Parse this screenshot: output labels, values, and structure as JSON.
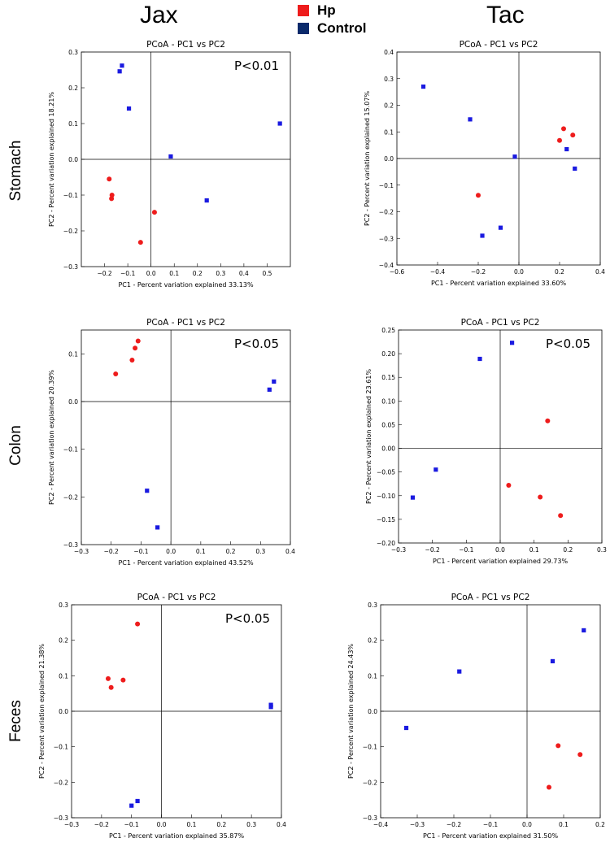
{
  "columns": [
    "Jax",
    "Tac"
  ],
  "rows": [
    "Stomach",
    "Colon",
    "Feces"
  ],
  "legend": [
    {
      "label": "Hp",
      "color": "#ee1c1c"
    },
    {
      "label": "Control",
      "color": "#0b2a6b"
    }
  ],
  "colors": {
    "hp": "#ee1c1c",
    "control": "#1a1ae0"
  },
  "chart_data": [
    {
      "type": "scatter",
      "title": "PCoA - PC1 vs PC2",
      "xlabel": "PC1 - Percent variation explained 33.13%",
      "ylabel": "PC2 - Percent variation explained 18.21%",
      "annotation": "P<0.01",
      "xlim": [
        -0.3,
        0.6
      ],
      "ylim": [
        -0.3,
        0.3
      ],
      "xticks": [
        -0.2,
        -0.1,
        0.0,
        0.1,
        0.2,
        0.3,
        0.4,
        0.5
      ],
      "xtick_labels": [
        "−0.2",
        "−0.1",
        "0.0",
        "0.1",
        "0.2",
        "0.3",
        "0.4",
        "0.5"
      ],
      "yticks": [
        -0.3,
        -0.2,
        -0.1,
        0.0,
        0.1,
        0.2,
        0.3
      ],
      "ytick_labels": [
        "−0.3",
        "−0.2",
        "−0.1",
        "0.0",
        "0.1",
        "0.2",
        "0.3"
      ],
      "series": [
        {
          "name": "Hp",
          "points": [
            [
              -0.18,
              -0.055
            ],
            [
              -0.168,
              -0.1
            ],
            [
              -0.17,
              -0.11
            ],
            [
              0.015,
              -0.148
            ],
            [
              -0.045,
              -0.232
            ]
          ]
        },
        {
          "name": "Control",
          "points": [
            [
              -0.125,
              0.262
            ],
            [
              -0.135,
              0.246
            ],
            [
              -0.095,
              0.142
            ],
            [
              0.085,
              0.008
            ],
            [
              0.24,
              -0.115
            ],
            [
              0.555,
              0.1
            ]
          ]
        }
      ]
    },
    {
      "type": "scatter",
      "title": "PCoA - PC1 vs PC2",
      "xlabel": "PC1 - Percent variation explained 33.60%",
      "ylabel": "PC2 - Percent variation explained 15.07%",
      "annotation": "",
      "xlim": [
        -0.6,
        0.4
      ],
      "ylim": [
        -0.4,
        0.4
      ],
      "xticks": [
        -0.6,
        -0.4,
        -0.2,
        0.0,
        0.2,
        0.4
      ],
      "xtick_labels": [
        "−0.6",
        "−0.4",
        "−0.2",
        "0.0",
        "0.2",
        "0.4"
      ],
      "yticks": [
        -0.4,
        -0.3,
        -0.2,
        -0.1,
        0.0,
        0.1,
        0.2,
        0.3,
        0.4
      ],
      "ytick_labels": [
        "−0.4",
        "−0.3",
        "−0.2",
        "−0.1",
        "0.0",
        "0.1",
        "0.2",
        "0.3",
        "0.4"
      ],
      "series": [
        {
          "name": "Hp",
          "points": [
            [
              0.22,
              0.112
            ],
            [
              0.265,
              0.088
            ],
            [
              0.2,
              0.068
            ],
            [
              -0.2,
              -0.138
            ]
          ]
        },
        {
          "name": "Control",
          "points": [
            [
              -0.47,
              0.27
            ],
            [
              -0.24,
              0.147
            ],
            [
              -0.02,
              0.007
            ],
            [
              0.235,
              0.035
            ],
            [
              0.275,
              -0.038
            ],
            [
              -0.18,
              -0.29
            ],
            [
              -0.09,
              -0.26
            ]
          ]
        }
      ]
    },
    {
      "type": "scatter",
      "title": "PCoA - PC1 vs PC2",
      "xlabel": "PC1 - Percent variation explained 43.52%",
      "ylabel": "PC2 - Percent variation explained 20.39%",
      "annotation": "P<0.05",
      "xlim": [
        -0.3,
        0.4
      ],
      "ylim": [
        -0.3,
        0.15
      ],
      "xticks": [
        -0.3,
        -0.2,
        -0.1,
        0.0,
        0.1,
        0.2,
        0.3,
        0.4
      ],
      "xtick_labels": [
        "−0.3",
        "−0.2",
        "−0.1",
        "0.0",
        "0.1",
        "0.2",
        "0.3",
        "0.4"
      ],
      "yticks": [
        -0.3,
        -0.2,
        -0.1,
        0.0,
        0.1
      ],
      "ytick_labels": [
        "−0.3",
        "−0.2",
        "−0.1",
        "0.0",
        "0.1"
      ],
      "series": [
        {
          "name": "Hp",
          "points": [
            [
              -0.11,
              0.127
            ],
            [
              -0.12,
              0.112
            ],
            [
              -0.13,
              0.087
            ],
            [
              -0.185,
              0.058
            ]
          ]
        },
        {
          "name": "Control",
          "points": [
            [
              0.345,
              0.042
            ],
            [
              0.33,
              0.025
            ],
            [
              -0.08,
              -0.187
            ],
            [
              -0.045,
              -0.264
            ]
          ]
        }
      ]
    },
    {
      "type": "scatter",
      "title": "PCoA - PC1 vs PC2",
      "xlabel": "PC1 - Percent variation explained 29.73%",
      "ylabel": "PC2 - Percent variation explained 23.61%",
      "annotation": "P<0.05",
      "xlim": [
        -0.3,
        0.3
      ],
      "ylim": [
        -0.2,
        0.25
      ],
      "xticks": [
        -0.3,
        -0.2,
        -0.1,
        0.0,
        0.1,
        0.2,
        0.3
      ],
      "xtick_labels": [
        "−0.3",
        "−0.2",
        "−0.1",
        "0.0",
        "0.1",
        "0.2",
        "0.3"
      ],
      "yticks": [
        -0.2,
        -0.15,
        -0.1,
        -0.05,
        0.0,
        0.05,
        0.1,
        0.15,
        0.2,
        0.25
      ],
      "ytick_labels": [
        "−0.20",
        "−0.15",
        "−0.10",
        "−0.05",
        "0.00",
        "0.05",
        "0.10",
        "0.15",
        "0.20",
        "0.25"
      ],
      "series": [
        {
          "name": "Hp",
          "points": [
            [
              0.14,
              0.058
            ],
            [
              0.025,
              -0.078
            ],
            [
              0.118,
              -0.103
            ],
            [
              0.178,
              -0.142
            ]
          ]
        },
        {
          "name": "Control",
          "points": [
            [
              0.035,
              0.223
            ],
            [
              -0.06,
              0.189
            ],
            [
              -0.19,
              -0.045
            ],
            [
              -0.258,
              -0.104
            ]
          ]
        }
      ]
    },
    {
      "type": "scatter",
      "title": "PCoA - PC1 vs PC2",
      "xlabel": "PC1 - Percent variation explained 35.87%",
      "ylabel": "PC2 - Percent variation explained 21.38%",
      "annotation": "P<0.05",
      "xlim": [
        -0.3,
        0.4
      ],
      "ylim": [
        -0.3,
        0.3
      ],
      "xticks": [
        -0.3,
        -0.2,
        -0.1,
        0.0,
        0.1,
        0.2,
        0.3,
        0.4
      ],
      "xtick_labels": [
        "−0.3",
        "−0.2",
        "−0.1",
        "0.0",
        "0.1",
        "0.2",
        "0.3",
        "0.4"
      ],
      "yticks": [
        -0.3,
        -0.2,
        -0.1,
        0.0,
        0.1,
        0.2,
        0.3
      ],
      "ytick_labels": [
        "−0.3",
        "−0.2",
        "−0.1",
        "0.0",
        "0.1",
        "0.2",
        "0.3"
      ],
      "series": [
        {
          "name": "Hp",
          "points": [
            [
              -0.08,
              0.246
            ],
            [
              -0.178,
              0.092
            ],
            [
              -0.128,
              0.088
            ],
            [
              -0.168,
              0.067
            ]
          ]
        },
        {
          "name": "Control",
          "points": [
            [
              0.365,
              0.018
            ],
            [
              0.365,
              0.012
            ],
            [
              -0.08,
              -0.253
            ],
            [
              -0.1,
              -0.266
            ]
          ]
        }
      ]
    },
    {
      "type": "scatter",
      "title": "PCoA - PC1 vs PC2",
      "xlabel": "PC1 - Percent variation explained 31.50%",
      "ylabel": "PC2 - Percent variation explained 24.43%",
      "annotation": "",
      "xlim": [
        -0.4,
        0.2
      ],
      "ylim": [
        -0.3,
        0.3
      ],
      "xticks": [
        -0.4,
        -0.3,
        -0.2,
        -0.1,
        0.0,
        0.1,
        0.2
      ],
      "xtick_labels": [
        "−0.4",
        "−0.3",
        "−0.2",
        "−0.1",
        "0.0",
        "0.1",
        "0.2"
      ],
      "yticks": [
        -0.3,
        -0.2,
        -0.1,
        0.0,
        0.1,
        0.2,
        0.3
      ],
      "ytick_labels": [
        "−0.3",
        "−0.2",
        "−0.1",
        "0.0",
        "0.1",
        "0.2",
        "0.3"
      ],
      "series": [
        {
          "name": "Hp",
          "points": [
            [
              0.085,
              -0.097
            ],
            [
              0.145,
              -0.122
            ],
            [
              0.06,
              -0.214
            ]
          ]
        },
        {
          "name": "Control",
          "points": [
            [
              0.155,
              0.228
            ],
            [
              0.07,
              0.141
            ],
            [
              -0.185,
              0.112
            ],
            [
              -0.33,
              -0.047
            ]
          ]
        }
      ]
    }
  ]
}
